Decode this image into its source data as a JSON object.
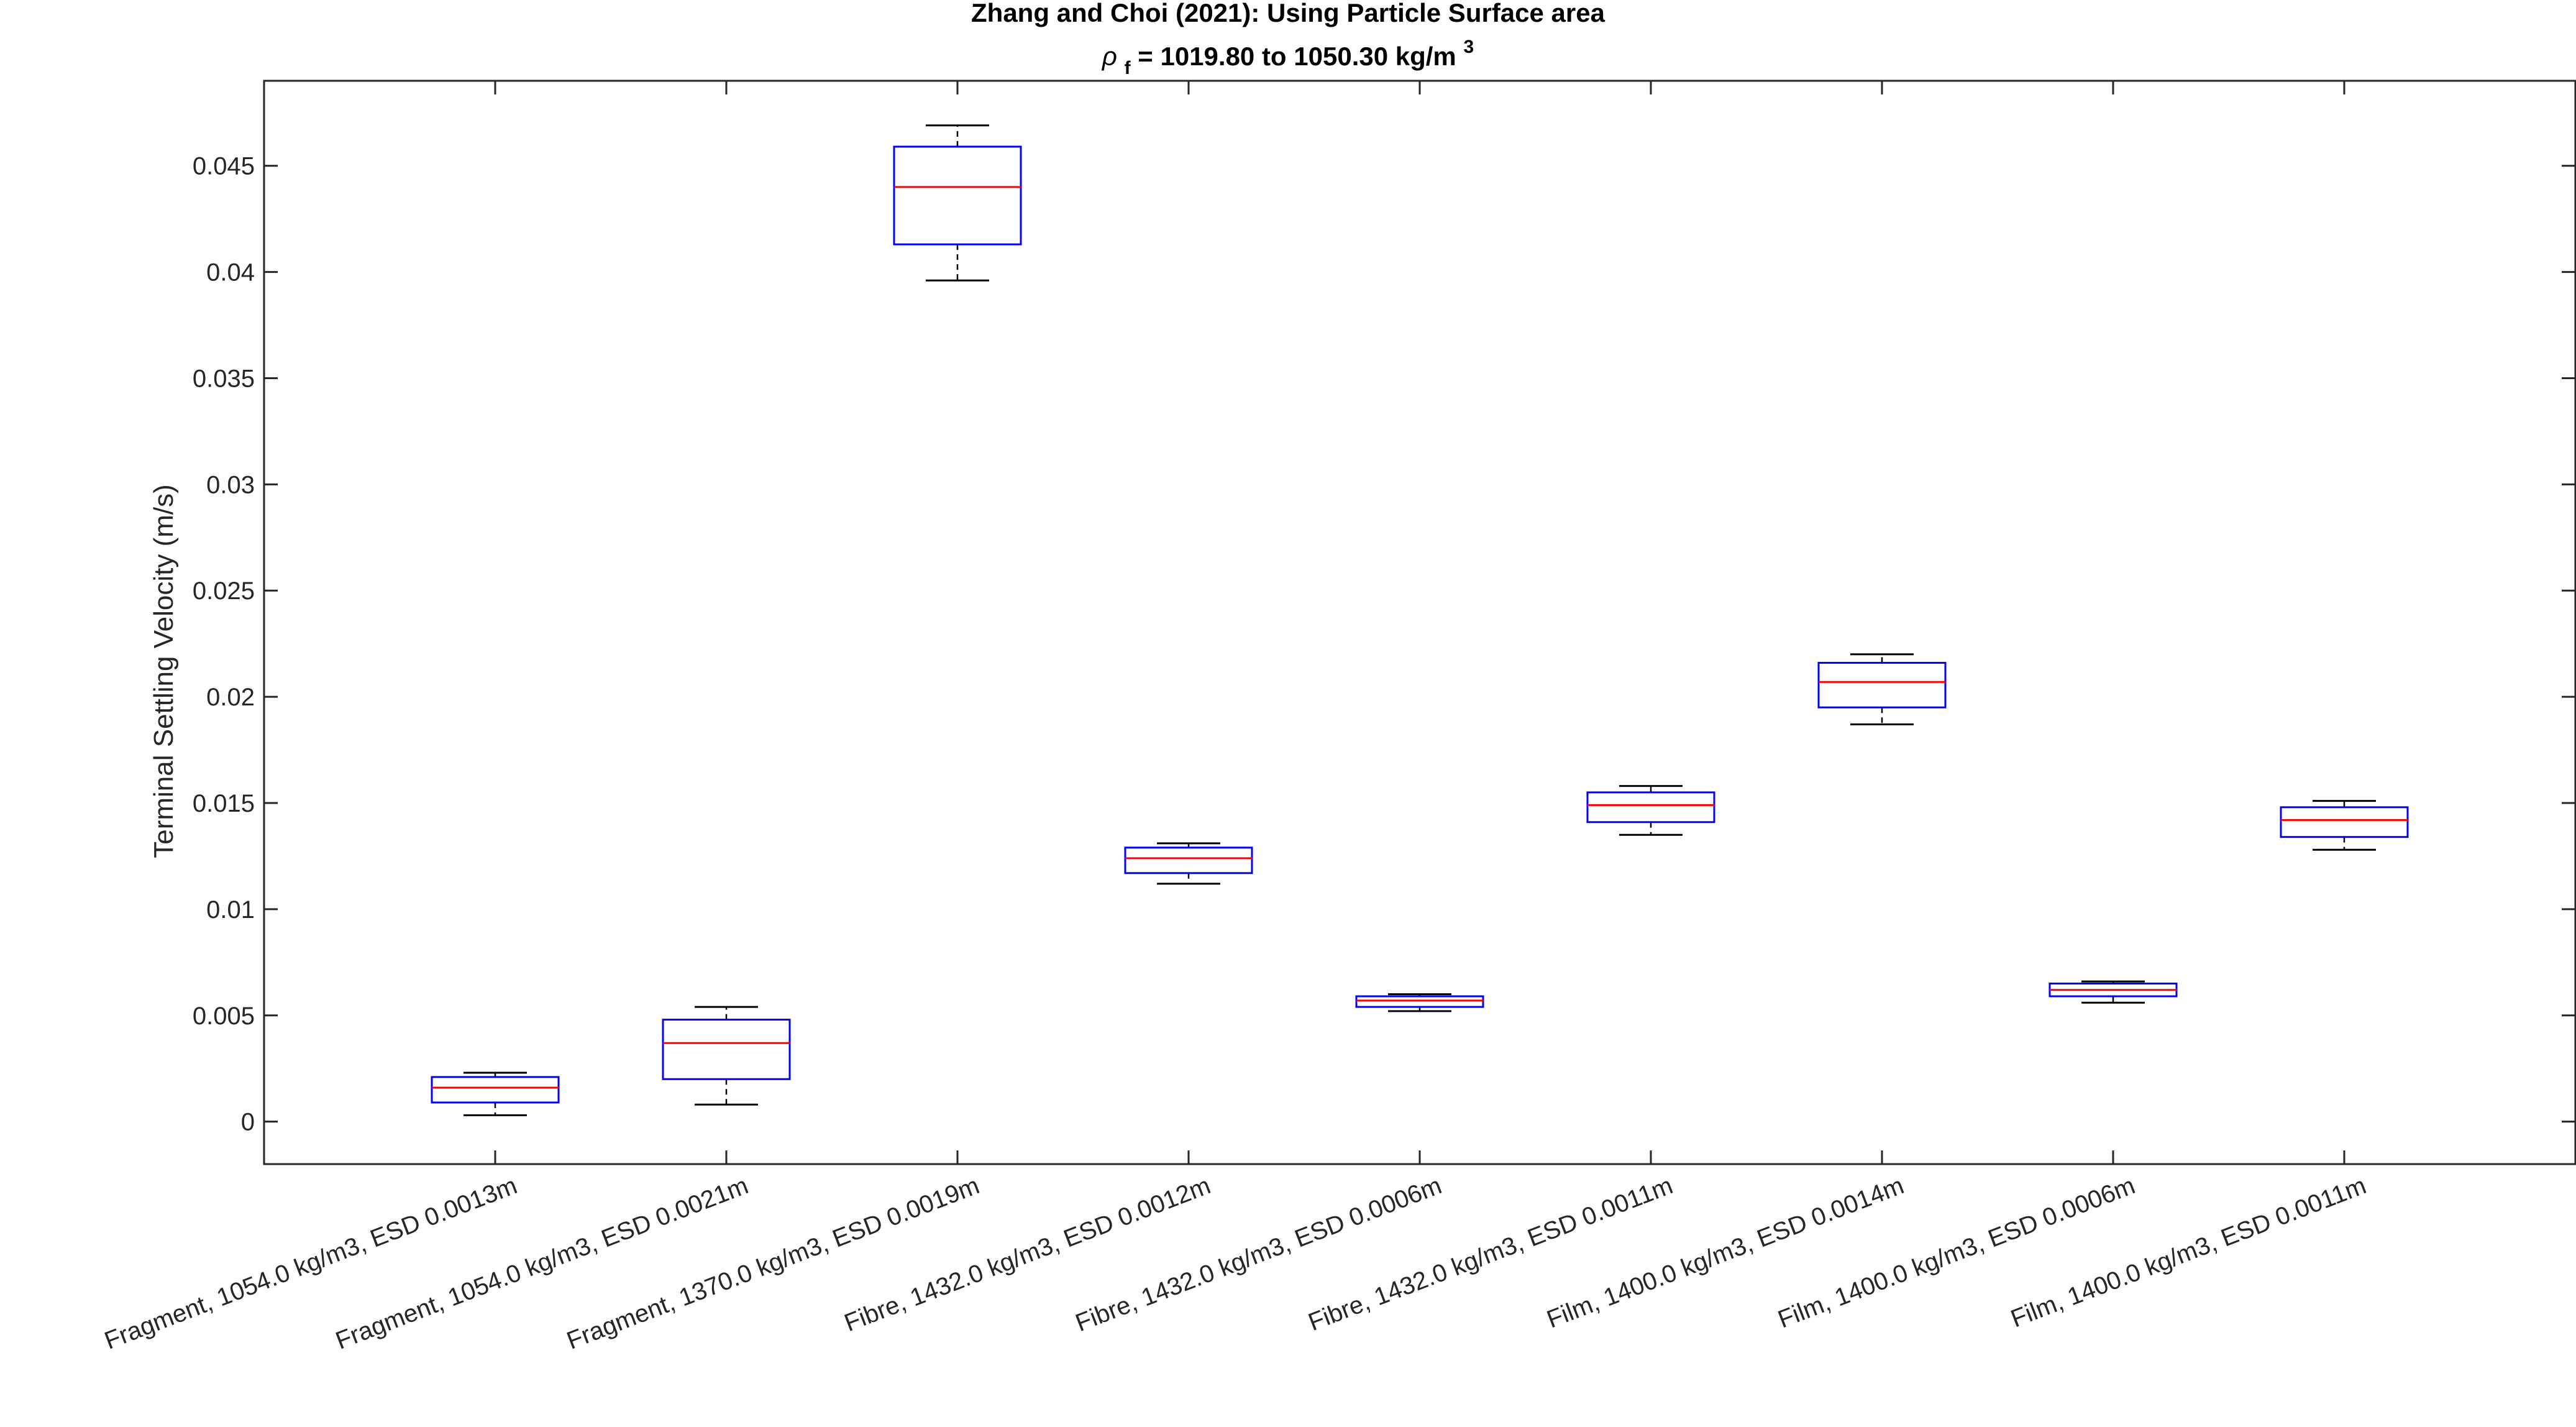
{
  "chart_data": {
    "type": "box",
    "title": "Zhang and Choi (2021):  Using Particle Surface area",
    "subtitle": {
      "rho_symbol": "ρ",
      "rho_sub": "f",
      "text": " = 1019.80 to 1050.30 kg/m",
      "sup": "3"
    },
    "ylabel": "Terminal Settling Velocity (m/s)",
    "ylim": [
      -0.002,
      0.049
    ],
    "yticks": [
      0,
      0.005,
      0.01,
      0.015,
      0.02,
      0.025,
      0.03,
      0.035,
      0.04,
      0.045
    ],
    "ytick_labels": [
      "0",
      "0.005",
      "0.01",
      "0.015",
      "0.02",
      "0.025",
      "0.03",
      "0.035",
      "0.04",
      "0.045"
    ],
    "categories": [
      "Fragment, 1054.0 kg/m3, ESD 0.0013m",
      "Fragment, 1054.0 kg/m3, ESD 0.0021m",
      "Fragment, 1370.0 kg/m3, ESD 0.0019m",
      "Fibre, 1432.0 kg/m3, ESD 0.0012m",
      "Fibre, 1432.0 kg/m3, ESD 0.0006m",
      "Fibre, 1432.0 kg/m3, ESD 0.0011m",
      "Film, 1400.0 kg/m3, ESD 0.0014m",
      "Film, 1400.0 kg/m3, ESD 0.0006m",
      "Film, 1400.0 kg/m3, ESD 0.0011m"
    ],
    "boxes": [
      {
        "whisker_low": 0.0003,
        "q1": 0.0009,
        "median": 0.0016,
        "q3": 0.0021,
        "whisker_high": 0.0023
      },
      {
        "whisker_low": 0.0008,
        "q1": 0.002,
        "median": 0.0037,
        "q3": 0.0048,
        "whisker_high": 0.0054
      },
      {
        "whisker_low": 0.0396,
        "q1": 0.0413,
        "median": 0.044,
        "q3": 0.0459,
        "whisker_high": 0.0469
      },
      {
        "whisker_low": 0.0112,
        "q1": 0.0117,
        "median": 0.0124,
        "q3": 0.0129,
        "whisker_high": 0.0131
      },
      {
        "whisker_low": 0.0052,
        "q1": 0.0054,
        "median": 0.0057,
        "q3": 0.0059,
        "whisker_high": 0.006
      },
      {
        "whisker_low": 0.0135,
        "q1": 0.0141,
        "median": 0.0149,
        "q3": 0.0155,
        "whisker_high": 0.0158
      },
      {
        "whisker_low": 0.0187,
        "q1": 0.0195,
        "median": 0.0207,
        "q3": 0.0216,
        "whisker_high": 0.022
      },
      {
        "whisker_low": 0.0056,
        "q1": 0.0059,
        "median": 0.0062,
        "q3": 0.0065,
        "whisker_high": 0.0066
      },
      {
        "whisker_low": 0.0128,
        "q1": 0.0134,
        "median": 0.0142,
        "q3": 0.0148,
        "whisker_high": 0.0151
      }
    ],
    "grid": false,
    "colors": {
      "box": "#0000ff",
      "median": "#ff0000",
      "whisker": "#000000",
      "axis": "#262626"
    }
  }
}
